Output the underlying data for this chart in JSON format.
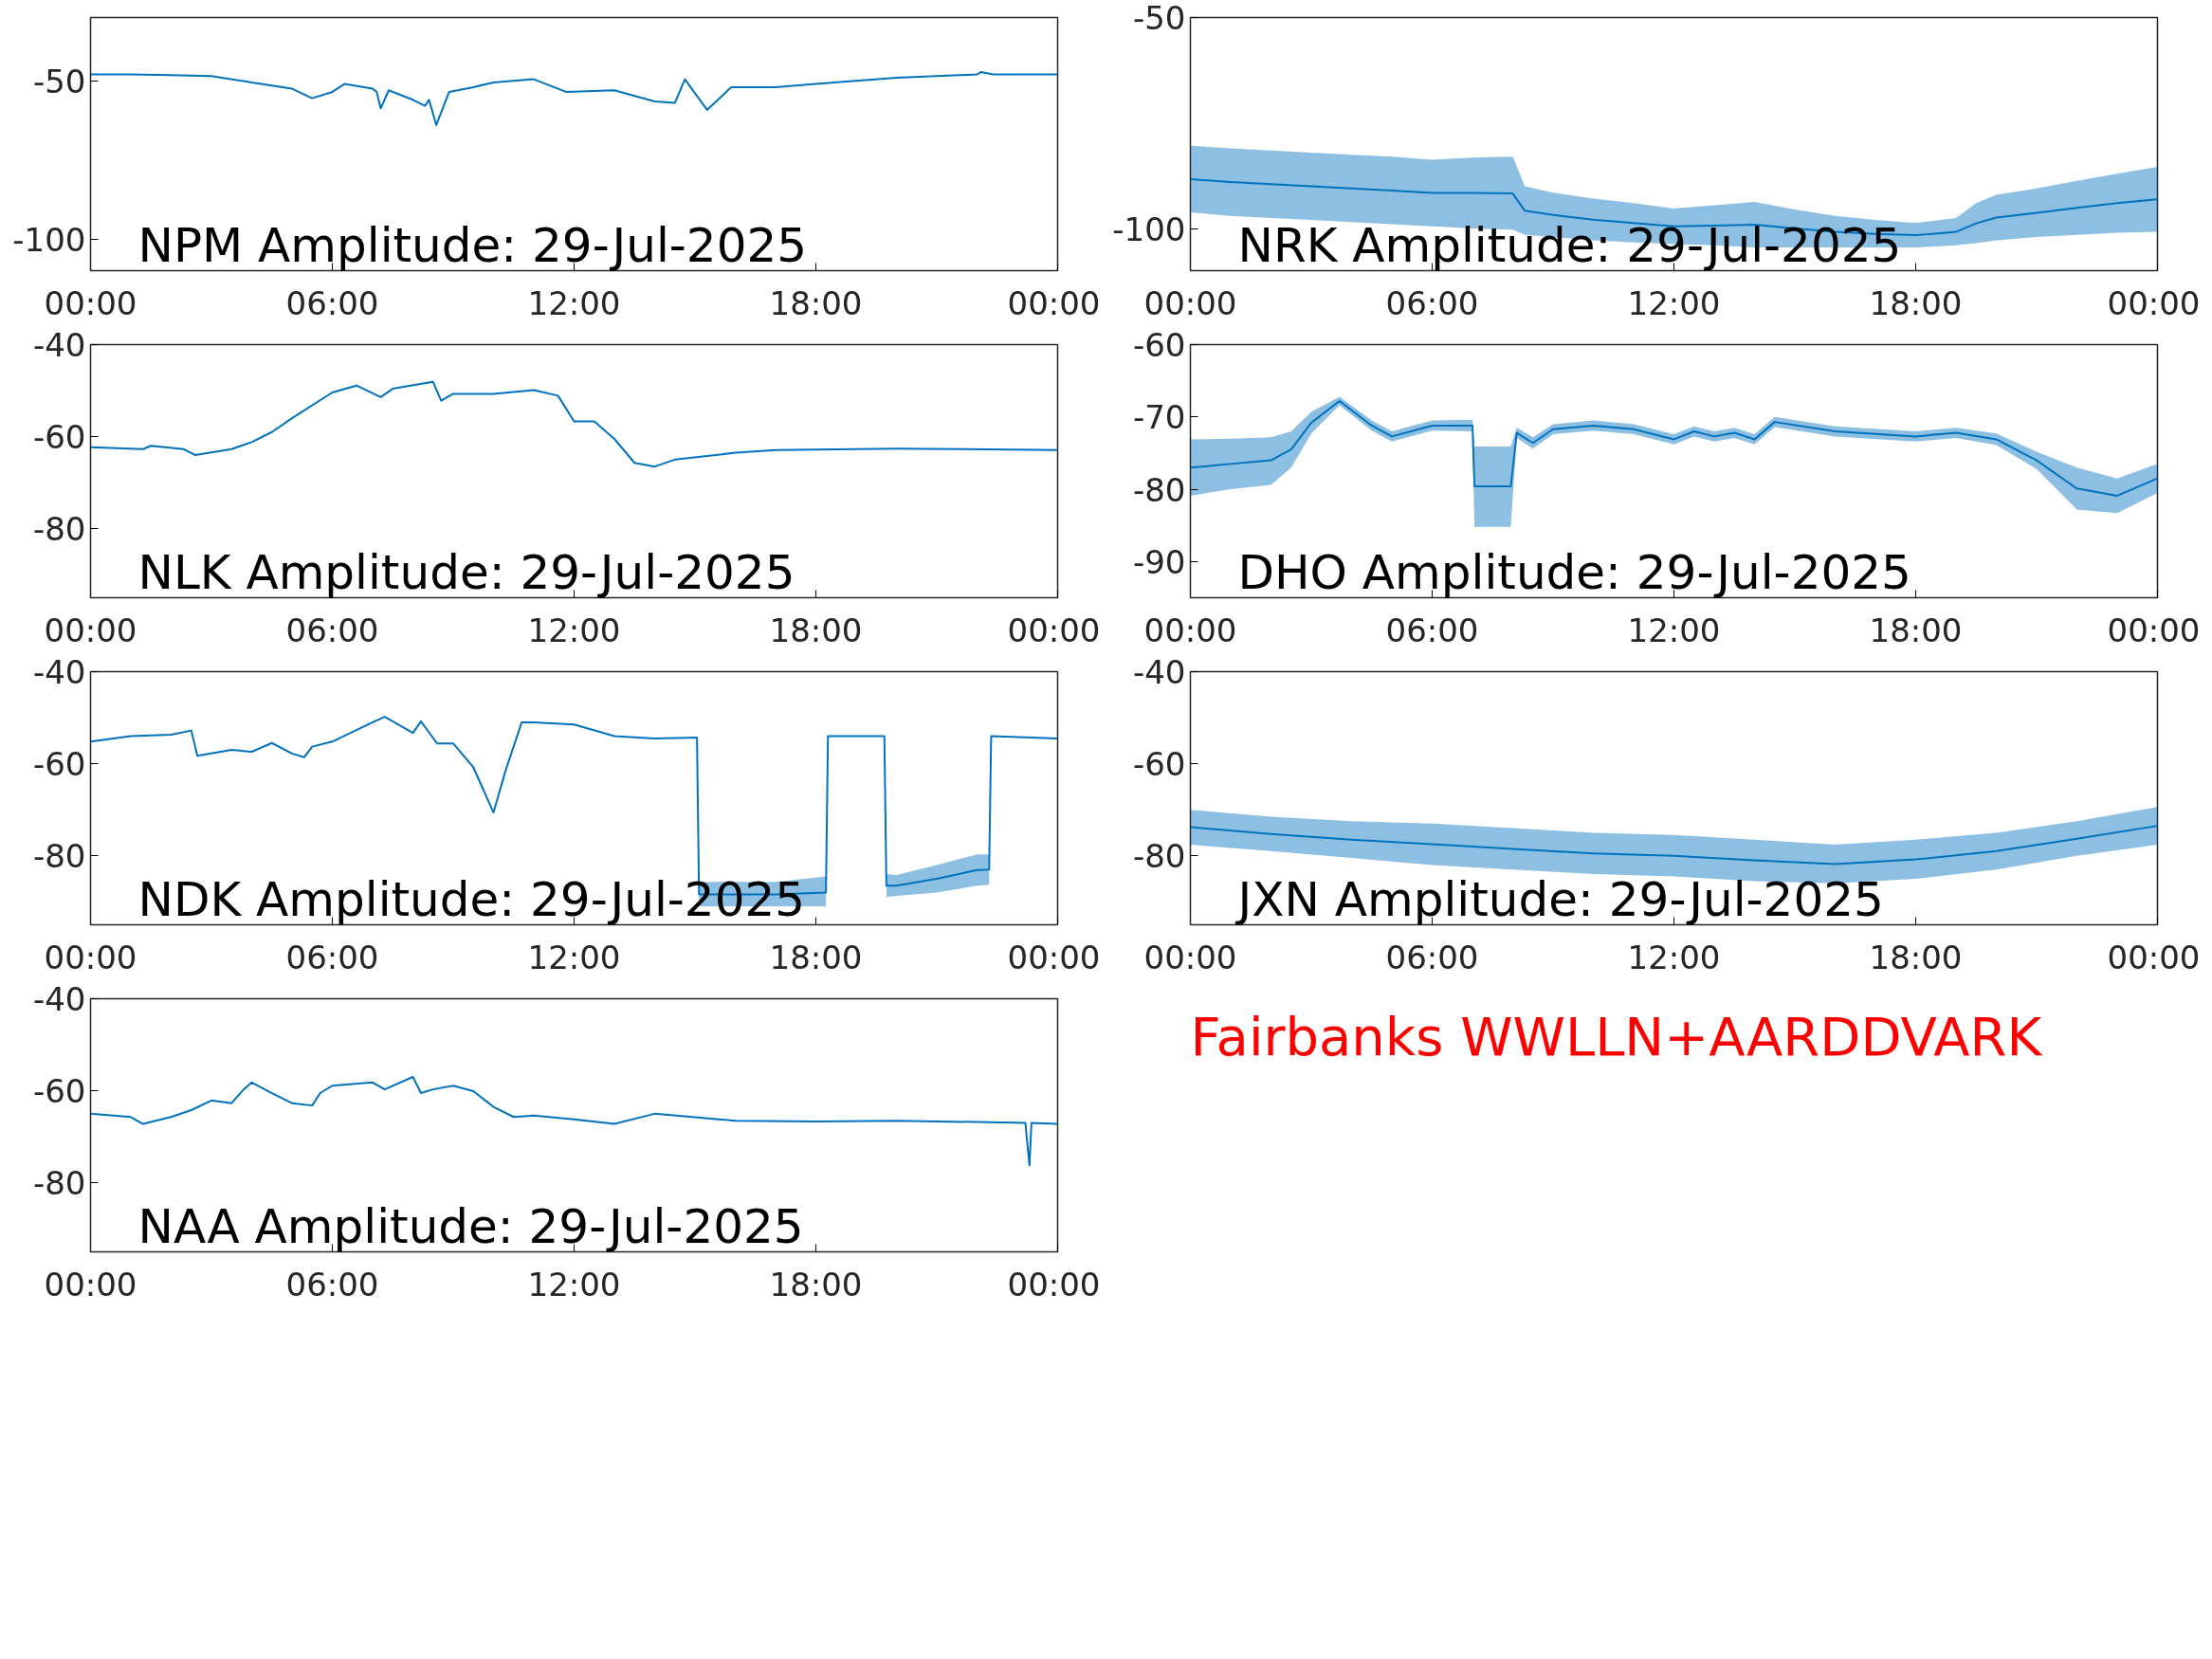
{
  "chart_data": [
    {
      "type": "line",
      "title": "NPM Amplitude: 29-Jul-2025",
      "xlim": [
        0,
        24
      ],
      "ylim": [
        -110,
        -30
      ],
      "xticks": [
        {
          "value": 0,
          "label": "00:00"
        },
        {
          "value": 6,
          "label": "06:00"
        },
        {
          "value": 12,
          "label": "12:00"
        },
        {
          "value": 18,
          "label": "18:00"
        },
        {
          "value": 24,
          "label": "00:00"
        }
      ],
      "yticks": [
        -100,
        -50
      ],
      "x": [
        0,
        1,
        2,
        3,
        4,
        5,
        5.5,
        6,
        6.3,
        7,
        7.1,
        7.2,
        7.4,
        8,
        8.3,
        8.4,
        8.58,
        8.9,
        9.5,
        10,
        11,
        11.8,
        13,
        14,
        14.5,
        14.75,
        15.3,
        15.9,
        17,
        18,
        20,
        22,
        22.1,
        22.4,
        24
      ],
      "series": [
        {
          "color": "#0072bd",
          "values": [
            -48,
            -48,
            -48.2,
            -48.5,
            -50.5,
            -52.5,
            -55.5,
            -53.5,
            -51,
            -52.5,
            -53.5,
            -58.7,
            -53,
            -56,
            -57.9,
            -56,
            -64,
            -53.5,
            -52,
            -50.5,
            -49.5,
            -53.5,
            -53,
            -56.5,
            -57,
            -49.5,
            -59.2,
            -52,
            -52,
            -51,
            -49,
            -48,
            -47.2,
            -48,
            -48
          ]
        }
      ]
    },
    {
      "type": "line",
      "title": "NRK Amplitude: 29-Jul-2025",
      "xlim": [
        0,
        24
      ],
      "ylim": [
        -110,
        -50
      ],
      "xticks": [
        {
          "value": 0,
          "label": "00:00"
        },
        {
          "value": 6,
          "label": "06:00"
        },
        {
          "value": 12,
          "label": "12:00"
        },
        {
          "value": 18,
          "label": "18:00"
        },
        {
          "value": 24,
          "label": "00:00"
        }
      ],
      "yticks": [
        -100,
        -50
      ],
      "x": [
        0,
        1,
        2,
        3,
        4,
        5,
        6,
        7,
        8,
        8.3,
        9,
        10,
        11,
        12,
        13,
        14,
        15,
        16,
        17,
        18,
        19,
        19.5,
        20,
        21,
        22,
        23,
        24
      ],
      "series": [
        {
          "color": "#0072bd",
          "values": [
            -88.3,
            -89,
            -89.5,
            -90,
            -90.5,
            -91,
            -91.6,
            -91.6,
            -91.7,
            -95.8,
            -96.8,
            -97.9,
            -98.7,
            -99.5,
            -99.3,
            -99.1,
            -100,
            -100.8,
            -101.3,
            -101.6,
            -100.8,
            -98.8,
            -97.4,
            -96.3,
            -95.1,
            -94,
            -93.1
          ],
          "upper": [
            -80.4,
            -81,
            -81.5,
            -82,
            -82.5,
            -83,
            -83.7,
            -83.2,
            -83,
            -90,
            -91.5,
            -92.9,
            -94,
            -95.3,
            -94.5,
            -93.7,
            -95.5,
            -97,
            -98,
            -98.7,
            -97.5,
            -94,
            -92,
            -90.5,
            -88.7,
            -87,
            -85.4
          ],
          "lower": [
            -96.2,
            -97,
            -97.5,
            -98,
            -98.5,
            -99,
            -99.5,
            -100,
            -100.3,
            -101.5,
            -102,
            -102.8,
            -103.3,
            -103.7,
            -104,
            -104.5,
            -104.5,
            -104.5,
            -104.5,
            -104.5,
            -104,
            -103.5,
            -102.8,
            -102,
            -101.5,
            -101,
            -100.8
          ]
        }
      ]
    },
    {
      "type": "line",
      "title": "NLK Amplitude: 29-Jul-2025",
      "xlim": [
        0,
        24
      ],
      "ylim": [
        -95,
        -40
      ],
      "xticks": [
        {
          "value": 0,
          "label": "00:00"
        },
        {
          "value": 6,
          "label": "06:00"
        },
        {
          "value": 12,
          "label": "12:00"
        },
        {
          "value": 18,
          "label": "18:00"
        },
        {
          "value": 24,
          "label": "00:00"
        }
      ],
      "yticks": [
        -80,
        -60,
        -40
      ],
      "x": [
        0,
        1.3,
        1.5,
        2.3,
        2.6,
        3.5,
        4,
        4.5,
        5,
        6,
        6.6,
        7.2,
        7.5,
        8.5,
        8.7,
        9,
        10,
        11,
        11.6,
        12,
        12.5,
        13,
        13.5,
        14,
        14.5,
        16,
        17,
        20,
        24
      ],
      "series": [
        {
          "color": "#0072bd",
          "values": [
            -62.3,
            -62.7,
            -62,
            -62.7,
            -64,
            -62.7,
            -61.2,
            -59,
            -56,
            -50.4,
            -48.9,
            -51.4,
            -49.6,
            -48.1,
            -52.2,
            -50.7,
            -50.7,
            -49.9,
            -51.1,
            -56.7,
            -56.7,
            -60.5,
            -65.7,
            -66.5,
            -65,
            -63.5,
            -62.9,
            -62.6,
            -62.9
          ]
        }
      ]
    },
    {
      "type": "line",
      "title": "DHO Amplitude: 29-Jul-2025",
      "xlim": [
        0,
        24
      ],
      "ylim": [
        -95,
        -60
      ],
      "xticks": [
        {
          "value": 0,
          "label": "00:00"
        },
        {
          "value": 6,
          "label": "06:00"
        },
        {
          "value": 12,
          "label": "12:00"
        },
        {
          "value": 18,
          "label": "18:00"
        },
        {
          "value": 24,
          "label": "00:00"
        }
      ],
      "yticks": [
        -90,
        -80,
        -70,
        -60
      ],
      "x": [
        0,
        1,
        2,
        2.5,
        3,
        3.7,
        4.5,
        5,
        6,
        7,
        7.05,
        7.5,
        7.95,
        8.1,
        8.5,
        9,
        10,
        11,
        12,
        12.5,
        13,
        13.5,
        14,
        14.5,
        16,
        18,
        19,
        20,
        21,
        22,
        23,
        24
      ],
      "series": [
        {
          "color": "#0072bd",
          "values": [
            -77,
            -76.5,
            -76,
            -74.5,
            -70.8,
            -67.8,
            -71.2,
            -72.7,
            -71.2,
            -71.2,
            -79.6,
            -79.6,
            -79.6,
            -72.2,
            -73.6,
            -71.7,
            -71.2,
            -71.7,
            -73.1,
            -72,
            -72.7,
            -72.2,
            -73.1,
            -70.7,
            -72,
            -72.7,
            -72.2,
            -73.1,
            -76,
            -79.9,
            -80.9,
            -78.5
          ],
          "upper": [
            -73.1,
            -73,
            -72.8,
            -72,
            -69.3,
            -67.2,
            -70.5,
            -72,
            -70.5,
            -70.4,
            -74.1,
            -74.1,
            -74.1,
            -71.5,
            -72.8,
            -71,
            -70.5,
            -71,
            -72.4,
            -71.3,
            -72,
            -71.5,
            -72.4,
            -70,
            -71.3,
            -72,
            -71.5,
            -72.3,
            -74.8,
            -77,
            -78.5,
            -76.5
          ],
          "lower": [
            -80.9,
            -80,
            -79.4,
            -77,
            -72.3,
            -68.4,
            -71.9,
            -73.4,
            -71.9,
            -72,
            -85.2,
            -85.2,
            -85.2,
            -72.9,
            -74.4,
            -72.4,
            -71.9,
            -72.4,
            -73.8,
            -72.7,
            -73.4,
            -72.9,
            -73.8,
            -71.4,
            -72.7,
            -73.4,
            -72.9,
            -73.9,
            -77.2,
            -82.8,
            -83.3,
            -80.5
          ]
        }
      ]
    },
    {
      "type": "line",
      "title": "NDK Amplitude: 29-Jul-2025",
      "xlim": [
        0,
        24
      ],
      "ylim": [
        -95,
        -40
      ],
      "xticks": [
        {
          "value": 0,
          "label": "00:00"
        },
        {
          "value": 6,
          "label": "06:00"
        },
        {
          "value": 12,
          "label": "12:00"
        },
        {
          "value": 18,
          "label": "18:00"
        },
        {
          "value": 24,
          "label": "00:00"
        }
      ],
      "yticks": [
        -80,
        -60,
        -40
      ],
      "x": [
        0,
        1,
        2,
        2.5,
        2.65,
        3.5,
        4,
        4.5,
        5,
        5.3,
        5.5,
        6,
        7,
        7.3,
        8,
        8.2,
        8.6,
        9,
        9.5,
        10,
        10.3,
        10.7,
        11,
        12,
        13,
        14,
        15.05,
        15.1,
        16,
        17,
        18.25,
        18.3,
        19.7,
        19.75,
        20,
        21,
        22,
        22.3,
        22.35,
        24
      ],
      "series": [
        {
          "color": "#0072bd",
          "values": [
            -55.2,
            -54,
            -53.7,
            -52.8,
            -58.3,
            -57,
            -57.4,
            -55.5,
            -57.8,
            -58.6,
            -56.3,
            -55.2,
            -51,
            -49.8,
            -53.3,
            -50.8,
            -55.6,
            -55.6,
            -60.8,
            -70.6,
            -61.5,
            -51,
            -51,
            -51.5,
            -54,
            -54.5,
            -54.3,
            -88.4,
            -88.4,
            -88.4,
            -88,
            -54,
            -54,
            -86.5,
            -86.5,
            -85,
            -83.1,
            -83,
            -54,
            -54.5
          ],
          "upper": [
            null,
            null,
            null,
            null,
            null,
            null,
            null,
            null,
            null,
            null,
            null,
            null,
            null,
            null,
            null,
            null,
            null,
            null,
            null,
            null,
            null,
            null,
            null,
            null,
            null,
            null,
            null,
            -85.7,
            -85.7,
            -85.7,
            -84.5,
            null,
            null,
            -84,
            -84.2,
            -82,
            -79.7,
            -79.7,
            null,
            null
          ],
          "lower": [
            null,
            null,
            null,
            null,
            null,
            null,
            null,
            null,
            null,
            null,
            null,
            null,
            null,
            null,
            null,
            null,
            null,
            null,
            null,
            null,
            null,
            null,
            null,
            null,
            null,
            null,
            null,
            -91,
            -91,
            -91,
            -91,
            null,
            null,
            -89,
            -88.7,
            -88,
            -86.5,
            -86.3,
            null,
            null
          ]
        }
      ]
    },
    {
      "type": "line",
      "title": "JXN Amplitude: 29-Jul-2025",
      "xlim": [
        0,
        24
      ],
      "ylim": [
        -95,
        -40
      ],
      "xticks": [
        {
          "value": 0,
          "label": "00:00"
        },
        {
          "value": 6,
          "label": "06:00"
        },
        {
          "value": 12,
          "label": "12:00"
        },
        {
          "value": 18,
          "label": "18:00"
        },
        {
          "value": 24,
          "label": "00:00"
        }
      ],
      "yticks": [
        -80,
        -60,
        -40
      ],
      "x": [
        0,
        2,
        4,
        6,
        8,
        10,
        12,
        14,
        16,
        18,
        20,
        22,
        24
      ],
      "series": [
        {
          "color": "#0072bd",
          "values": [
            -73.8,
            -75.3,
            -76.5,
            -77.5,
            -78.5,
            -79.5,
            -80,
            -81,
            -81.8,
            -80.8,
            -79,
            -76.3,
            -73.5
          ],
          "upper": [
            -70,
            -71.5,
            -72.5,
            -73,
            -74,
            -75,
            -75.5,
            -76.5,
            -77.6,
            -76.5,
            -75,
            -72.5,
            -69.4
          ],
          "lower": [
            -77.6,
            -79,
            -80.5,
            -82,
            -83,
            -84,
            -84.5,
            -85.5,
            -86,
            -85,
            -83,
            -80,
            -77.6
          ]
        }
      ]
    },
    {
      "type": "line",
      "title": "NAA Amplitude: 29-Jul-2025",
      "xlim": [
        0,
        24
      ],
      "ylim": [
        -95,
        -40
      ],
      "xticks": [
        {
          "value": 0,
          "label": "00:00"
        },
        {
          "value": 6,
          "label": "06:00"
        },
        {
          "value": 12,
          "label": "12:00"
        },
        {
          "value": 18,
          "label": "18:00"
        },
        {
          "value": 24,
          "label": "00:00"
        }
      ],
      "yticks": [
        -80,
        -60,
        -40
      ],
      "x": [
        0,
        1,
        1.3,
        2,
        2.5,
        3,
        3.5,
        3.8,
        4,
        4.5,
        5,
        5.5,
        5.7,
        6,
        7,
        7.3,
        8,
        8.2,
        8.5,
        9,
        9.5,
        10,
        10.5,
        11,
        12,
        13,
        14,
        16,
        18,
        20,
        22,
        23.2,
        23.3,
        23.35,
        24
      ],
      "series": [
        {
          "color": "#0072bd",
          "values": [
            -65,
            -65.7,
            -67.2,
            -65.7,
            -64.2,
            -62.1,
            -62.7,
            -59.7,
            -58.2,
            -60.5,
            -62.7,
            -63.2,
            -60.5,
            -58.9,
            -58.2,
            -59.7,
            -57,
            -60.5,
            -59.7,
            -58.9,
            -60.1,
            -63.5,
            -65.7,
            -65.4,
            -66.2,
            -67.2,
            -65,
            -66.5,
            -66.7,
            -66.5,
            -66.8,
            -67,
            -76.2,
            -67,
            -67.2
          ]
        }
      ]
    },
    {
      "type": "other",
      "title": "Fairbanks WWLLN+AARDDVARK",
      "color": "#ff0000"
    }
  ]
}
